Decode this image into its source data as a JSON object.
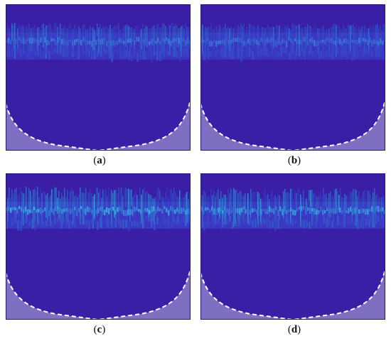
{
  "panels": [
    {
      "id": "a",
      "label": "a",
      "band_strength": 0.55
    },
    {
      "id": "b",
      "label": "b",
      "band_strength": 0.5
    },
    {
      "id": "c",
      "label": "c",
      "band_strength": 0.95
    },
    {
      "id": "d",
      "label": "d",
      "band_strength": 0.85
    }
  ],
  "colors": {
    "background": "#3a1fa6",
    "band_low": "#3b3bc8",
    "band_high": "#36c4e8",
    "cone_of_influence": "#7f6fc2",
    "boundary": "#ffffff"
  }
}
